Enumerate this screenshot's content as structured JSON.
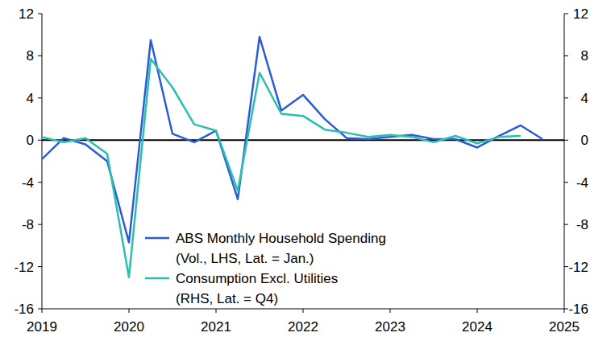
{
  "chart_data": {
    "type": "line",
    "x": [
      2019,
      2019.25,
      2019.5,
      2019.75,
      2020,
      2020.25,
      2020.5,
      2020.75,
      2021,
      2021.25,
      2021.5,
      2021.75,
      2022,
      2022.25,
      2022.5,
      2022.75,
      2023,
      2023.25,
      2023.5,
      2023.75,
      2024,
      2024.25,
      2024.5,
      2024.75
    ],
    "series": [
      {
        "name": "ABS Monthly Household Spending (Vol., LHS, Lat. = Jan.)",
        "color": "#2b5bd7",
        "values": [
          -1.8,
          0.2,
          -0.4,
          -2.0,
          -9.7,
          9.5,
          0.6,
          -0.2,
          0.9,
          -5.6,
          9.8,
          2.8,
          4.3,
          2.0,
          0.2,
          0.1,
          0.3,
          0.5,
          0.1,
          0.1,
          -0.7,
          0.4,
          1.4,
          0.1
        ]
      },
      {
        "name": "Consumption Excl. Utilities (RHS, Lat. = Q4)",
        "color": "#2bbfb0",
        "axis": "y2",
        "values": [
          0.3,
          -0.2,
          0.2,
          -1.3,
          -13.0,
          7.7,
          5.0,
          1.5,
          0.9,
          -4.8,
          6.4,
          2.5,
          2.3,
          1.0,
          0.7,
          0.3,
          0.5,
          0.3,
          -0.2,
          0.4,
          -0.3,
          0.3,
          0.4,
          null
        ]
      }
    ],
    "xlim": [
      2019,
      2025
    ],
    "xticks": [
      2019,
      2020,
      2021,
      2022,
      2023,
      2024,
      2025
    ],
    "ylim": [
      -16,
      12
    ],
    "yticks": [
      -16,
      -12,
      -8,
      -4,
      0,
      4,
      8,
      12
    ],
    "y2lim": [
      -16,
      12
    ],
    "y2ticks": [
      -16,
      -12,
      -8,
      -4,
      0,
      4,
      8,
      12
    ],
    "grid": false,
    "legend": "bottom"
  }
}
